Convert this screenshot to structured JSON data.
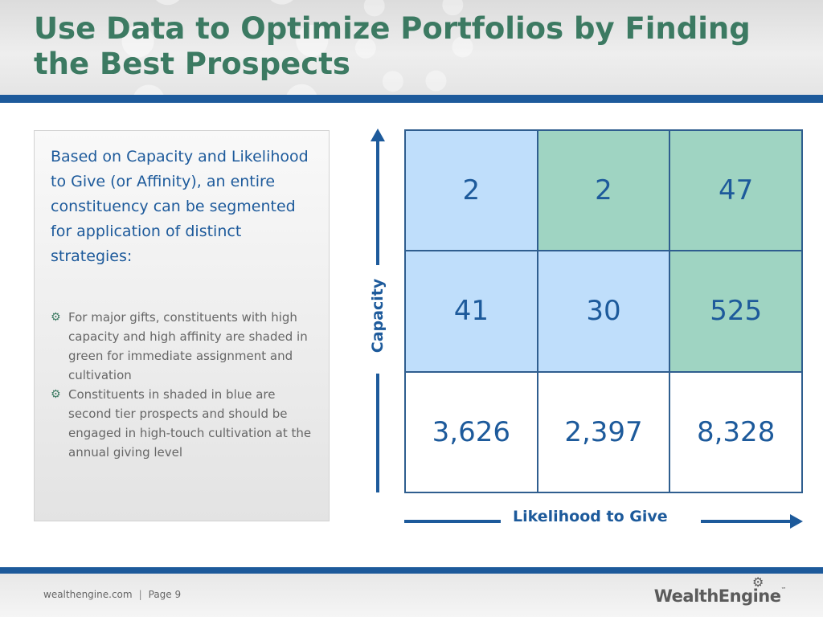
{
  "slide": {
    "title": "Use Data to Optimize Portfolios by Finding the Best Prospects"
  },
  "textbox": {
    "intro": "Based on Capacity and Likelihood to Give (or Affinity), an entire constituency can be segmented for application of distinct strategies:",
    "bullets": [
      "For major gifts, constituents with high capacity and high affinity are shaded in green for immediate assignment and cultivation",
      "Constituents in shaded in blue are second tier prospects and should be engaged in high-touch cultivation at the annual giving level"
    ],
    "bullet_icon": "gear-icon"
  },
  "matrix": {
    "y_label": "Capacity",
    "x_label": "Likelihood to Give",
    "rows": [
      [
        {
          "value": "2",
          "shade": "blue"
        },
        {
          "value": "2",
          "shade": "green"
        },
        {
          "value": "47",
          "shade": "green"
        }
      ],
      [
        {
          "value": "41",
          "shade": "blue"
        },
        {
          "value": "30",
          "shade": "blue"
        },
        {
          "value": "525",
          "shade": "green"
        }
      ],
      [
        {
          "value": "3,626",
          "shade": "white"
        },
        {
          "value": "2,397",
          "shade": "white"
        },
        {
          "value": "8,328",
          "shade": "white"
        }
      ]
    ],
    "colors": {
      "blue": "#bfdefb",
      "green": "#9fd4c2",
      "text": "#1d5a9b"
    }
  },
  "footer": {
    "site": "wealthengine.com",
    "separator": "|",
    "page": "Page 9",
    "logo": "WealthEngine",
    "trademark": "™"
  },
  "theme": {
    "title_color": "#3c7a62",
    "accent_blue": "#1d5a9b"
  }
}
